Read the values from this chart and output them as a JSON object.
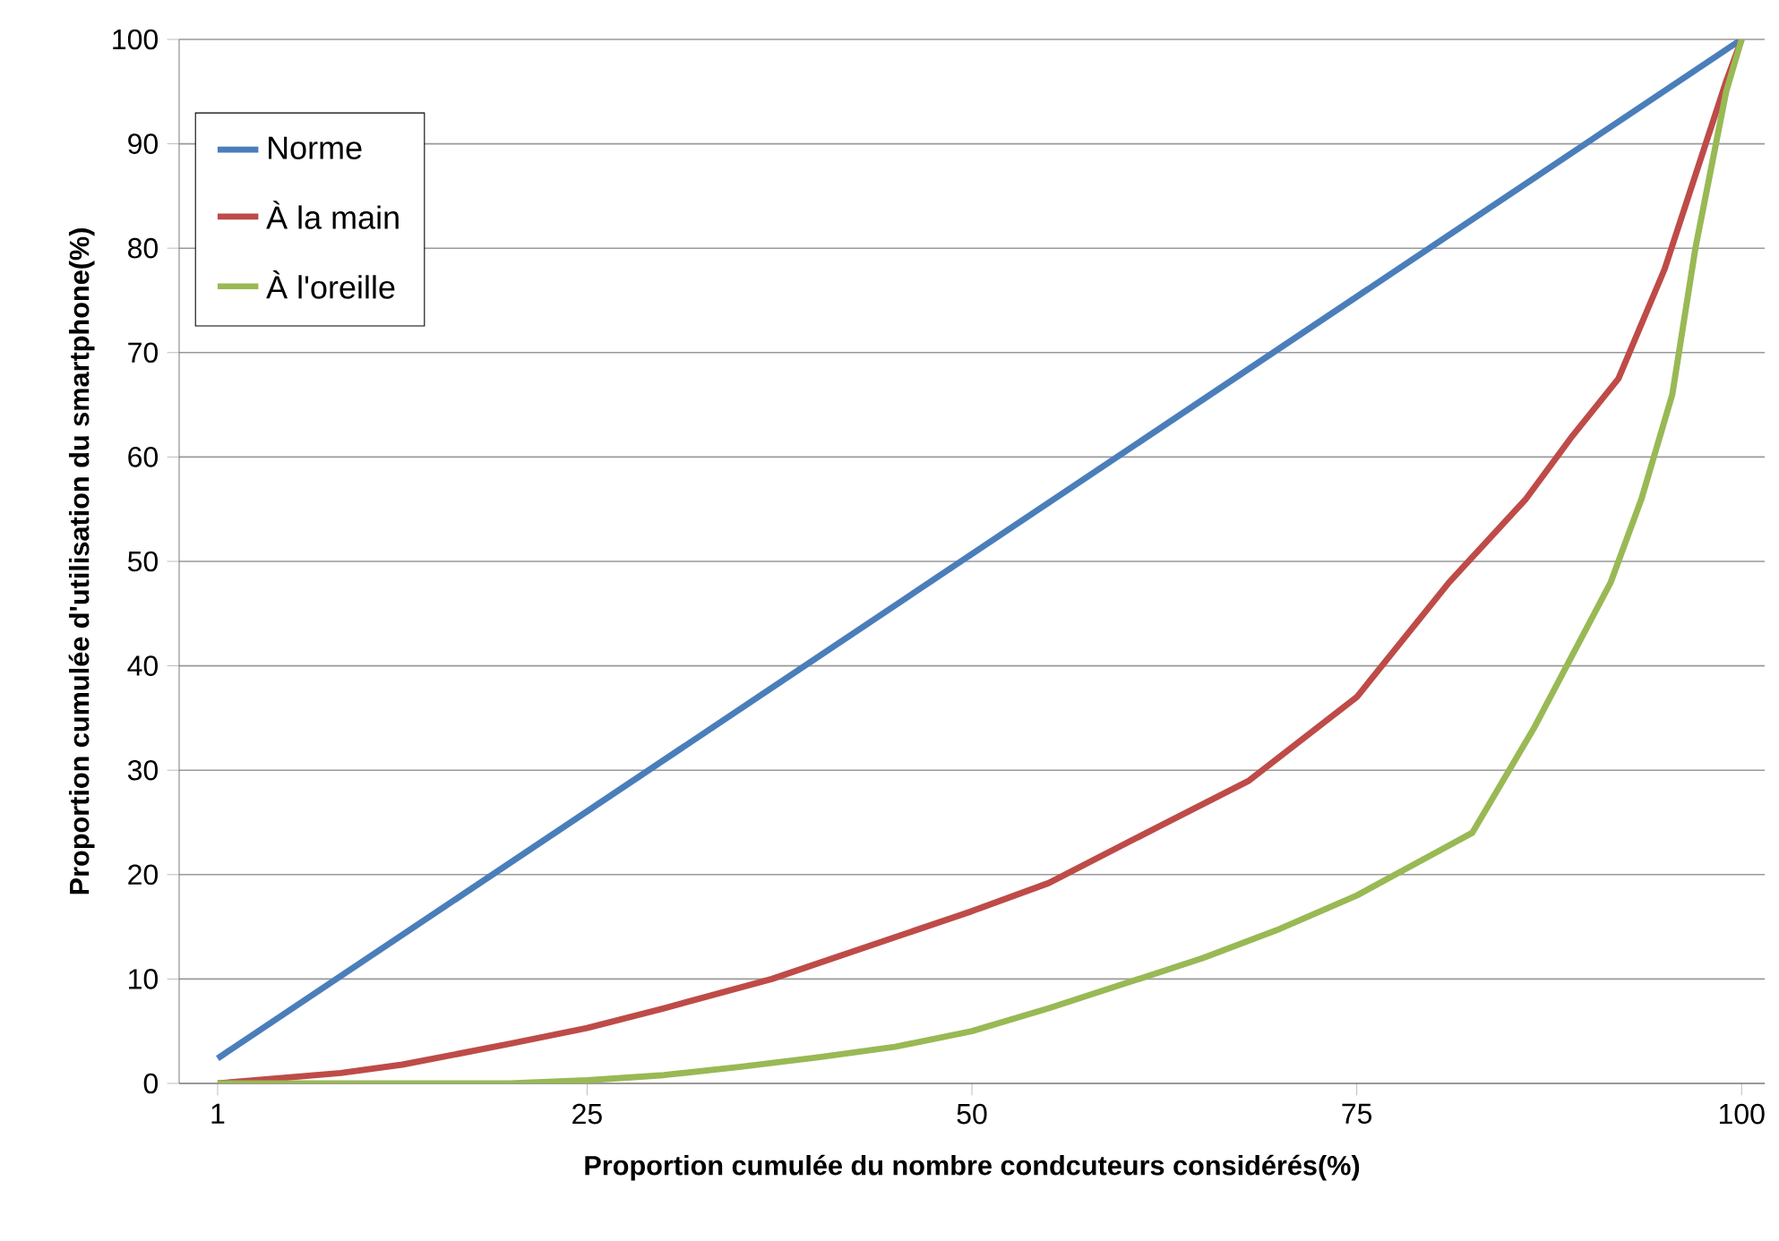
{
  "chart_data": {
    "type": "line",
    "xlabel": "Proportion cumulée du nombre condcuteurs considérés(%)",
    "ylabel": "Proportion cumulée d'utilisation du smartphone(%)",
    "xlim": [
      -1.5,
      101.5
    ],
    "ylim": [
      0,
      100
    ],
    "xticks": [
      1,
      25,
      50,
      75,
      100
    ],
    "yticks": [
      0,
      10,
      20,
      30,
      40,
      50,
      60,
      70,
      80,
      90,
      100
    ],
    "grid": "y",
    "legend": "top left",
    "marker": "none",
    "series": [
      {
        "name": "Norme",
        "color": "#4a7ebb",
        "x": [
          1,
          100
        ],
        "values": [
          2.4,
          100
        ]
      },
      {
        "name": "À la main",
        "color": "#be4b48",
        "x": [
          1,
          9,
          13,
          20,
          25,
          30,
          37,
          45,
          50,
          55,
          62,
          68,
          75,
          81,
          86,
          89,
          92,
          95,
          97,
          99,
          100
        ],
        "values": [
          0,
          1,
          1.8,
          3.8,
          5.3,
          7.2,
          10,
          14,
          16.5,
          19.2,
          24.5,
          29,
          37,
          48,
          56,
          62,
          67.5,
          78,
          87,
          96,
          100
        ]
      },
      {
        "name": "À l'oreille",
        "color": "#98b954",
        "x": [
          1,
          20,
          25,
          30,
          35,
          40,
          45,
          50,
          55,
          60,
          65,
          70,
          75,
          80,
          82.5,
          86.5,
          89,
          91.5,
          93.5,
          95.5,
          97,
          99,
          100
        ],
        "values": [
          0,
          0,
          0.3,
          0.8,
          1.6,
          2.5,
          3.5,
          5,
          7.2,
          9.6,
          12,
          14.8,
          18,
          22,
          24,
          34,
          41,
          48,
          56,
          66,
          80,
          95,
          100
        ]
      }
    ]
  }
}
